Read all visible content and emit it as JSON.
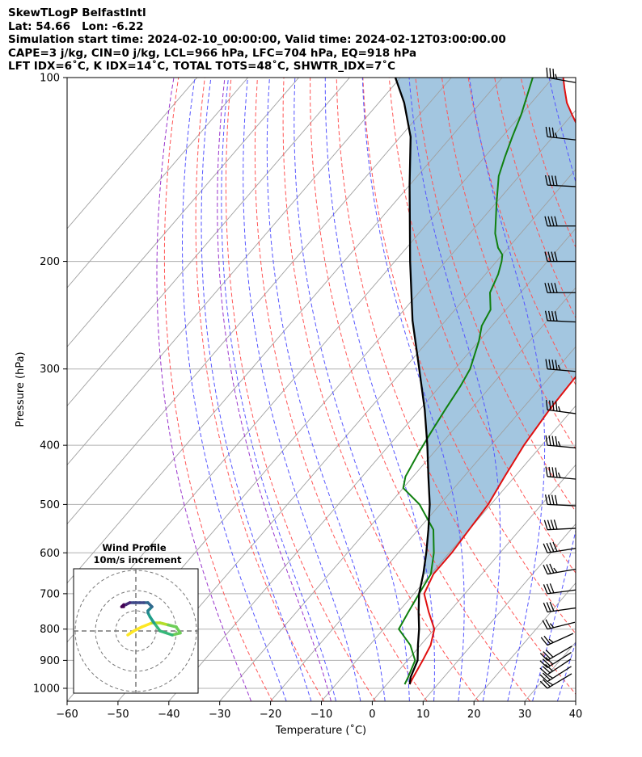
{
  "header": {
    "line1": "SkewTLogP BelfastIntl",
    "line2": "Lat: 54.66   Lon: -6.22",
    "line3": "Simulation start time: 2024-02-10_00:00:00, Valid time: 2024-02-12T03:00:00.00",
    "line4": "CAPE=3 j/kg, CIN=0 j/kg, LCL=966 hPa, LFC=704 hPa, EQ=918 hPa",
    "line5": "LFT IDX=6˚C, K IDX=14˚C, TOTAL TOTS=48˚C, SHWTR_IDX=7˚C"
  },
  "chart_data": {
    "type": "line",
    "subtype": "skew-t log-p",
    "xlabel": "Temperature (˚C)",
    "ylabel": "Pressure (hPa)",
    "xlim": [
      -60,
      40
    ],
    "ylim": [
      1050,
      100
    ],
    "x_ticks": [
      -60,
      -50,
      -40,
      -30,
      -20,
      -10,
      0,
      10,
      20,
      30,
      40
    ],
    "x_tick_labels": [
      "−60",
      "−50",
      "−40",
      "−30",
      "−20",
      "−10",
      "0",
      "10",
      "20",
      "30",
      "40"
    ],
    "y_ticks": [
      1000,
      900,
      800,
      700,
      600,
      500,
      400,
      300,
      200,
      100
    ],
    "y_tick_labels": [
      "1000",
      "900",
      "800",
      "700",
      "600",
      "500",
      "400",
      "300",
      "200",
      "100"
    ],
    "grid": true,
    "series": [
      {
        "name": "Temperature",
        "color": "#e01010",
        "points": [
          [
            4.5,
            985
          ],
          [
            4,
            960
          ],
          [
            3,
            900
          ],
          [
            2,
            850
          ],
          [
            0,
            800
          ],
          [
            -4,
            750
          ],
          [
            -8,
            700
          ],
          [
            -9.5,
            650
          ],
          [
            -9.5,
            600
          ],
          [
            -10,
            550
          ],
          [
            -10.5,
            500
          ],
          [
            -12,
            450
          ],
          [
            -13.5,
            400
          ],
          [
            -14.5,
            350
          ],
          [
            -14.8,
            320
          ],
          [
            -15,
            300
          ],
          [
            -15.5,
            280
          ],
          [
            -17,
            260
          ],
          [
            -20,
            240
          ],
          [
            -24,
            220
          ],
          [
            -28,
            200
          ],
          [
            -32,
            185
          ],
          [
            -35,
            175
          ],
          [
            -38,
            165
          ],
          [
            -41,
            155
          ],
          [
            -45,
            145
          ],
          [
            -49,
            138
          ],
          [
            -53,
            130
          ],
          [
            -57,
            120
          ],
          [
            -60,
            115
          ],
          [
            -63,
            110
          ],
          [
            -66,
            104
          ],
          [
            -68,
            100
          ]
        ]
      },
      {
        "name": "Dewpoint",
        "color": "#108010",
        "points": [
          [
            3.5,
            985
          ],
          [
            3,
            960
          ],
          [
            1.5,
            900
          ],
          [
            -2,
            850
          ],
          [
            -7,
            800
          ],
          [
            -8,
            750
          ],
          [
            -9,
            700
          ],
          [
            -10,
            650
          ],
          [
            -13,
            600
          ],
          [
            -17,
            550
          ],
          [
            -24,
            500
          ],
          [
            -30,
            470
          ],
          [
            -31.5,
            450
          ],
          [
            -33,
            410
          ],
          [
            -34,
            380
          ],
          [
            -35,
            350
          ],
          [
            -36,
            320
          ],
          [
            -37,
            300
          ],
          [
            -40,
            270
          ],
          [
            -42,
            255
          ],
          [
            -43,
            240
          ],
          [
            -46,
            225
          ],
          [
            -47.5,
            210
          ],
          [
            -49,
            200
          ],
          [
            -50,
            195
          ],
          [
            -52,
            190
          ],
          [
            -55,
            180
          ],
          [
            -60,
            160
          ],
          [
            -64,
            145
          ],
          [
            -66,
            135
          ],
          [
            -68,
            125
          ],
          [
            -70,
            115
          ],
          [
            -74,
            100
          ]
        ]
      },
      {
        "name": "Parcel profile",
        "color": "#000000",
        "points": [
          [
            4.5,
            985
          ],
          [
            3.5,
            960
          ],
          [
            2,
            900
          ],
          [
            -0.5,
            850
          ],
          [
            -3,
            800
          ],
          [
            -6,
            750
          ],
          [
            -9,
            700
          ],
          [
            -11.5,
            650
          ],
          [
            -14.5,
            600
          ],
          [
            -18,
            550
          ],
          [
            -22,
            500
          ],
          [
            -27,
            450
          ],
          [
            -32.5,
            400
          ],
          [
            -39,
            350
          ],
          [
            -47,
            300
          ],
          [
            -56.5,
            250
          ],
          [
            -67,
            200
          ],
          [
            -80,
            150
          ],
          [
            -88,
            125
          ],
          [
            -95,
            110
          ],
          [
            -101,
            100
          ]
        ]
      }
    ],
    "shaded_region": {
      "name": "CAPE/CIN area",
      "color": "#a3c6e0",
      "between": [
        "Temperature",
        "Parcel profile"
      ],
      "p_range": [
        650,
        100
      ]
    },
    "dry_adiabats": {
      "color": "#ff5555",
      "theta_K": [
        250,
        260,
        270,
        280,
        290,
        300,
        310,
        320,
        330,
        340,
        350,
        360,
        370,
        380
      ]
    },
    "moist_adiabats": {
      "color": "#5555ff",
      "start_temps_C": [
        -20,
        -15,
        -10,
        -5,
        0,
        5,
        10,
        15,
        20,
        25,
        30,
        35
      ]
    },
    "isotherms": {
      "color": "#a0a0a0",
      "temps_C": [
        -140,
        -130,
        -120,
        -110,
        -100,
        -90,
        -80,
        -70,
        -60,
        -50,
        -40,
        -30,
        -20,
        -10,
        0,
        10,
        20,
        30,
        40
      ]
    },
    "special_lines": {
      "color": "#9933cc",
      "start_temps_C": [
        -27,
        -11
      ]
    },
    "wind_barbs": {
      "pressure_hPa": [
        1000,
        975,
        950,
        925,
        900,
        850,
        800,
        750,
        700,
        650,
        600,
        550,
        500,
        450,
        400,
        350,
        300,
        250,
        225,
        200,
        175,
        150,
        125,
        100
      ],
      "u_kt": [
        20,
        22,
        24,
        25,
        24,
        22,
        24,
        28,
        30,
        35,
        38,
        40,
        42,
        44,
        44,
        45,
        46,
        42,
        40,
        38,
        38,
        38,
        36,
        34
      ],
      "v_kt": [
        12,
        14,
        16,
        16,
        14,
        10,
        6,
        4,
        4,
        6,
        6,
        2,
        -2,
        -4,
        -4,
        -6,
        -4,
        -2,
        0,
        0,
        0,
        -2,
        -4,
        -6
      ]
    }
  },
  "wind_profile": {
    "title": "Wind Profile",
    "subtitle": "10m/s increment",
    "rings_mps": [
      10,
      20,
      30
    ],
    "u_mps": [
      -4,
      -1,
      3,
      8,
      12,
      16,
      20,
      22,
      18,
      12,
      9,
      7,
      6,
      6,
      7,
      8,
      6,
      4,
      2,
      -1,
      -3,
      -5,
      -6,
      -7,
      -6
    ],
    "v_mps": [
      -2,
      0,
      2,
      4,
      4,
      3,
      2,
      -1,
      -2,
      0,
      4,
      7,
      9,
      10,
      11,
      12,
      14,
      14,
      14,
      14,
      14,
      13,
      13,
      12,
      12
    ],
    "colormap": "viridis"
  }
}
